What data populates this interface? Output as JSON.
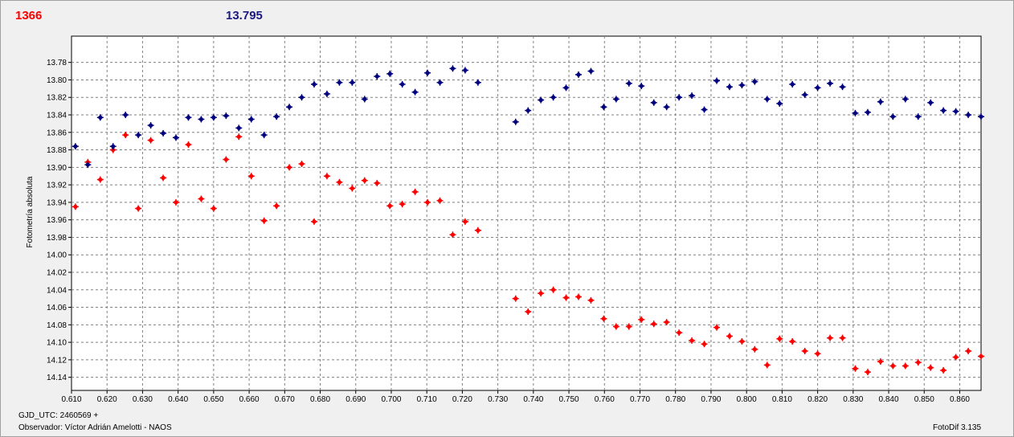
{
  "header": {
    "left_value": "1366",
    "center_value": "13.795"
  },
  "footer": {
    "gjd_label": "GJD_UTC: 2460569 +",
    "observer_label": "Observador: Víctor Adrián Amelotti - NAOS",
    "software_label": "FotoDif 3.135"
  },
  "colors": {
    "series_red": "#ff0000",
    "series_blue": "#00007f",
    "grid": "#808080",
    "plot_bg": "#ffffff"
  },
  "chart_data": {
    "type": "scatter",
    "ylabel": "Fotometría absoluta",
    "xlabel": "",
    "xlim": [
      0.61,
      0.866
    ],
    "ylim": [
      14.155,
      13.75
    ],
    "y_inverted": true,
    "grid": true,
    "x_ticks": [
      "0.610",
      "0.620",
      "0.630",
      "0.640",
      "0.650",
      "0.660",
      "0.670",
      "0.680",
      "0.690",
      "0.700",
      "0.710",
      "0.720",
      "0.730",
      "0.740",
      "0.750",
      "0.760",
      "0.770",
      "0.780",
      "0.790",
      "0.800",
      "0.810",
      "0.820",
      "0.830",
      "0.840",
      "0.850",
      "0.860"
    ],
    "y_ticks": [
      "13.78",
      "13.80",
      "13.82",
      "13.84",
      "13.86",
      "13.88",
      "13.90",
      "13.92",
      "13.94",
      "13.96",
      "13.98",
      "14.00",
      "14.02",
      "14.04",
      "14.06",
      "14.08",
      "14.10",
      "14.12",
      "14.14"
    ],
    "series": [
      {
        "color": "#ff0000",
        "points": [
          [
            0.6111,
            13.945
          ],
          [
            0.6146,
            13.894
          ],
          [
            0.6181,
            13.914
          ],
          [
            0.6217,
            13.88
          ],
          [
            0.6252,
            13.863
          ],
          [
            0.6288,
            13.947
          ],
          [
            0.6323,
            13.869
          ],
          [
            0.6358,
            13.912
          ],
          [
            0.6394,
            13.94
          ],
          [
            0.6429,
            13.874
          ],
          [
            0.6465,
            13.936
          ],
          [
            0.65,
            13.947
          ],
          [
            0.6535,
            13.891
          ],
          [
            0.6571,
            13.865
          ],
          [
            0.6606,
            13.91
          ],
          [
            0.6642,
            13.961
          ],
          [
            0.6677,
            13.944
          ],
          [
            0.6713,
            13.9
          ],
          [
            0.6748,
            13.896
          ],
          [
            0.6783,
            13.962
          ],
          [
            0.6819,
            13.91
          ],
          [
            0.6854,
            13.917
          ],
          [
            0.689,
            13.924
          ],
          [
            0.6925,
            13.915
          ],
          [
            0.696,
            13.918
          ],
          [
            0.6996,
            13.944
          ],
          [
            0.7031,
            13.942
          ],
          [
            0.7067,
            13.928
          ],
          [
            0.7102,
            13.94
          ],
          [
            0.7137,
            13.938
          ],
          [
            0.7173,
            13.977
          ],
          [
            0.7208,
            13.962
          ],
          [
            0.7244,
            13.972
          ],
          [
            0.735,
            14.05
          ],
          [
            0.7385,
            14.065
          ],
          [
            0.7421,
            14.044
          ],
          [
            0.7456,
            14.04
          ],
          [
            0.7492,
            14.049
          ],
          [
            0.7527,
            14.048
          ],
          [
            0.7562,
            14.052
          ],
          [
            0.7598,
            14.073
          ],
          [
            0.7633,
            14.082
          ],
          [
            0.7669,
            14.082
          ],
          [
            0.7704,
            14.074
          ],
          [
            0.7739,
            14.079
          ],
          [
            0.7775,
            14.077
          ],
          [
            0.781,
            14.089
          ],
          [
            0.7846,
            14.098
          ],
          [
            0.7881,
            14.102
          ],
          [
            0.7916,
            14.083
          ],
          [
            0.7952,
            14.093
          ],
          [
            0.7987,
            14.099
          ],
          [
            0.8023,
            14.108
          ],
          [
            0.8058,
            14.126
          ],
          [
            0.8093,
            14.096
          ],
          [
            0.8129,
            14.099
          ],
          [
            0.8164,
            14.11
          ],
          [
            0.82,
            14.113
          ],
          [
            0.8235,
            14.095
          ],
          [
            0.827,
            14.095
          ],
          [
            0.8306,
            14.13
          ],
          [
            0.8341,
            14.134
          ],
          [
            0.8377,
            14.122
          ],
          [
            0.8412,
            14.127
          ],
          [
            0.8447,
            14.127
          ],
          [
            0.8483,
            14.123
          ],
          [
            0.8518,
            14.129
          ],
          [
            0.8554,
            14.132
          ],
          [
            0.8589,
            14.117
          ],
          [
            0.8624,
            14.11
          ],
          [
            0.866,
            14.116
          ]
        ]
      },
      {
        "color": "#00007f",
        "points": [
          [
            0.6111,
            13.876
          ],
          [
            0.6146,
            13.897
          ],
          [
            0.6181,
            13.843
          ],
          [
            0.6217,
            13.876
          ],
          [
            0.6252,
            13.84
          ],
          [
            0.6288,
            13.863
          ],
          [
            0.6323,
            13.852
          ],
          [
            0.6358,
            13.861
          ],
          [
            0.6394,
            13.866
          ],
          [
            0.6429,
            13.843
          ],
          [
            0.6465,
            13.845
          ],
          [
            0.65,
            13.843
          ],
          [
            0.6535,
            13.841
          ],
          [
            0.6571,
            13.855
          ],
          [
            0.6606,
            13.845
          ],
          [
            0.6642,
            13.863
          ],
          [
            0.6677,
            13.842
          ],
          [
            0.6713,
            13.831
          ],
          [
            0.6748,
            13.82
          ],
          [
            0.6783,
            13.805
          ],
          [
            0.6819,
            13.816
          ],
          [
            0.6854,
            13.803
          ],
          [
            0.689,
            13.803
          ],
          [
            0.6925,
            13.822
          ],
          [
            0.696,
            13.796
          ],
          [
            0.6996,
            13.793
          ],
          [
            0.7031,
            13.805
          ],
          [
            0.7067,
            13.814
          ],
          [
            0.7102,
            13.792
          ],
          [
            0.7137,
            13.803
          ],
          [
            0.7173,
            13.787
          ],
          [
            0.7208,
            13.789
          ],
          [
            0.7244,
            13.803
          ],
          [
            0.735,
            13.848
          ],
          [
            0.7385,
            13.835
          ],
          [
            0.7421,
            13.823
          ],
          [
            0.7456,
            13.82
          ],
          [
            0.7492,
            13.809
          ],
          [
            0.7527,
            13.794
          ],
          [
            0.7562,
            13.79
          ],
          [
            0.7598,
            13.831
          ],
          [
            0.7633,
            13.822
          ],
          [
            0.7669,
            13.804
          ],
          [
            0.7704,
            13.807
          ],
          [
            0.7739,
            13.826
          ],
          [
            0.7775,
            13.831
          ],
          [
            0.781,
            13.82
          ],
          [
            0.7846,
            13.818
          ],
          [
            0.7881,
            13.834
          ],
          [
            0.7916,
            13.801
          ],
          [
            0.7952,
            13.808
          ],
          [
            0.7987,
            13.806
          ],
          [
            0.8023,
            13.802
          ],
          [
            0.8058,
            13.822
          ],
          [
            0.8093,
            13.827
          ],
          [
            0.8129,
            13.805
          ],
          [
            0.8164,
            13.817
          ],
          [
            0.82,
            13.809
          ],
          [
            0.8235,
            13.804
          ],
          [
            0.827,
            13.808
          ],
          [
            0.8306,
            13.838
          ],
          [
            0.8341,
            13.837
          ],
          [
            0.8377,
            13.825
          ],
          [
            0.8412,
            13.842
          ],
          [
            0.8447,
            13.822
          ],
          [
            0.8483,
            13.842
          ],
          [
            0.8518,
            13.826
          ],
          [
            0.8554,
            13.835
          ],
          [
            0.8589,
            13.836
          ],
          [
            0.8624,
            13.84
          ],
          [
            0.866,
            13.842
          ]
        ]
      }
    ]
  }
}
